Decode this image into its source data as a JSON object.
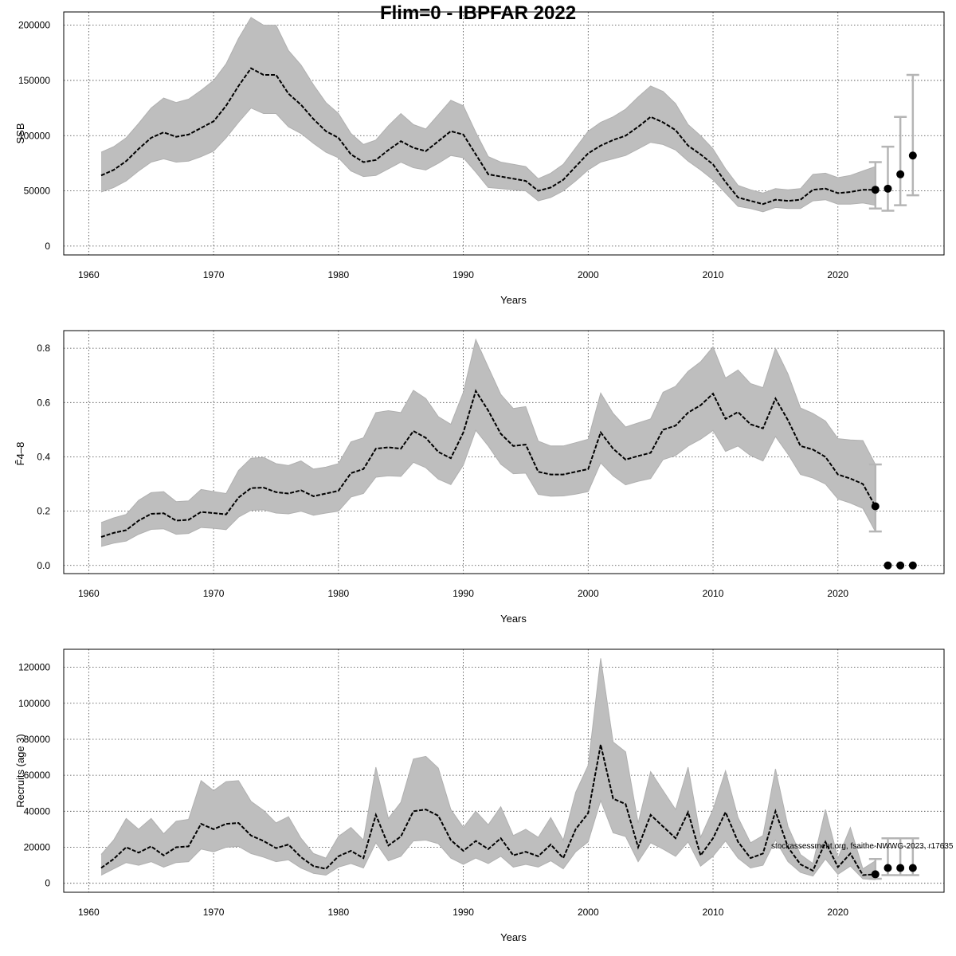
{
  "page_title": "Flim=0 - IBPFAR 2022",
  "credit": "stockassessment.org, fsaithe-NWWG-2023, r17635",
  "chart_data": [
    {
      "type": "line",
      "title": "Flim=0 - IBPFAR 2022",
      "xlabel": "Years",
      "ylabel": "SSB",
      "xlim": [
        1958,
        2028.5
      ],
      "ylim": [
        -8000,
        212000
      ],
      "xticks": [
        1960,
        1970,
        1980,
        1990,
        2000,
        2010,
        2020
      ],
      "yticks": [
        0,
        50000,
        100000,
        150000,
        200000
      ],
      "x": [
        1961,
        1962,
        1963,
        1964,
        1965,
        1966,
        1967,
        1968,
        1969,
        1970,
        1971,
        1972,
        1973,
        1974,
        1975,
        1976,
        1977,
        1978,
        1979,
        1980,
        1981,
        1982,
        1983,
        1984,
        1985,
        1986,
        1987,
        1988,
        1989,
        1990,
        1991,
        1992,
        1993,
        1994,
        1995,
        1996,
        1997,
        1998,
        1999,
        2000,
        2001,
        2002,
        2003,
        2004,
        2005,
        2006,
        2007,
        2008,
        2009,
        2010,
        2011,
        2012,
        2013,
        2014,
        2015,
        2016,
        2017,
        2018,
        2019,
        2020,
        2021,
        2022,
        2023
      ],
      "estimate": [
        64000,
        69000,
        77000,
        88000,
        98000,
        103000,
        99000,
        101000,
        107000,
        113000,
        127000,
        145000,
        161000,
        155000,
        155000,
        138000,
        128000,
        115000,
        104000,
        98000,
        83000,
        76000,
        78000,
        87000,
        95000,
        89000,
        86000,
        95000,
        104000,
        101000,
        83000,
        65000,
        63000,
        61000,
        59000,
        50000,
        53000,
        60000,
        72000,
        84000,
        91000,
        96000,
        100000,
        108000,
        117000,
        112000,
        105000,
        91000,
        83000,
        74000,
        58000,
        44000,
        41000,
        38000,
        42000,
        41000,
        42000,
        51000,
        52000,
        48000,
        49000,
        51000,
        51000
      ],
      "lower": [
        49000,
        53000,
        59000,
        68000,
        76000,
        79000,
        76000,
        77000,
        81000,
        86000,
        98000,
        112000,
        125000,
        120000,
        120000,
        108000,
        102000,
        93000,
        85000,
        80000,
        68000,
        63000,
        64000,
        70000,
        76000,
        71000,
        69000,
        75000,
        82000,
        80000,
        67000,
        53000,
        52000,
        51000,
        50000,
        41000,
        44000,
        50000,
        59000,
        69000,
        76000,
        79000,
        82000,
        88000,
        94000,
        92000,
        87000,
        77000,
        69000,
        60000,
        48000,
        36000,
        34000,
        31000,
        35000,
        34000,
        34000,
        41000,
        42000,
        38000,
        38000,
        39000,
        37000
      ],
      "upper": [
        85000,
        90000,
        98000,
        111000,
        125000,
        134000,
        130000,
        133000,
        141000,
        150000,
        165000,
        188000,
        207000,
        200000,
        200000,
        177000,
        164000,
        146000,
        130000,
        120000,
        102000,
        92000,
        96000,
        109000,
        120000,
        110000,
        106000,
        119000,
        132000,
        127000,
        103000,
        81000,
        76000,
        74000,
        72000,
        61000,
        66000,
        74000,
        89000,
        104000,
        112000,
        117000,
        124000,
        135000,
        145000,
        140000,
        129000,
        110000,
        100000,
        88000,
        70000,
        55000,
        51000,
        48000,
        52000,
        51000,
        52000,
        65000,
        66000,
        62000,
        64000,
        68000,
        72000
      ],
      "forecast": [
        {
          "x": 2023,
          "median": 51000,
          "low": 34000,
          "high": 76000
        },
        {
          "x": 2024,
          "median": 52000,
          "low": 32000,
          "high": 90000
        },
        {
          "x": 2025,
          "median": 65000,
          "low": 37000,
          "high": 117000
        },
        {
          "x": 2026,
          "median": 82000,
          "low": 46000,
          "high": 155000
        }
      ]
    },
    {
      "type": "line",
      "title": "",
      "xlabel": "Years",
      "ylabel": "F̄4–8",
      "xlim": [
        1958,
        2028.5
      ],
      "ylim": [
        -0.03,
        0.865
      ],
      "xticks": [
        1960,
        1970,
        1980,
        1990,
        2000,
        2010,
        2020
      ],
      "yticks": [
        "0.0",
        "0.2",
        "0.4",
        "0.6",
        "0.8"
      ],
      "x": [
        1961,
        1962,
        1963,
        1964,
        1965,
        1966,
        1967,
        1968,
        1969,
        1970,
        1971,
        1972,
        1973,
        1974,
        1975,
        1976,
        1977,
        1978,
        1979,
        1980,
        1981,
        1982,
        1983,
        1984,
        1985,
        1986,
        1987,
        1988,
        1989,
        1990,
        1991,
        1992,
        1993,
        1994,
        1995,
        1996,
        1997,
        1998,
        1999,
        2000,
        2001,
        2002,
        2003,
        2004,
        2005,
        2006,
        2007,
        2008,
        2009,
        2010,
        2011,
        2012,
        2013,
        2014,
        2015,
        2016,
        2017,
        2018,
        2019,
        2020,
        2021,
        2022,
        2023
      ],
      "estimate": [
        0.105,
        0.12,
        0.13,
        0.165,
        0.19,
        0.192,
        0.165,
        0.168,
        0.197,
        0.193,
        0.188,
        0.25,
        0.285,
        0.287,
        0.27,
        0.265,
        0.277,
        0.255,
        0.265,
        0.275,
        0.34,
        0.355,
        0.43,
        0.435,
        0.43,
        0.495,
        0.47,
        0.418,
        0.395,
        0.49,
        0.643,
        0.57,
        0.485,
        0.44,
        0.445,
        0.345,
        0.335,
        0.335,
        0.345,
        0.355,
        0.49,
        0.43,
        0.39,
        0.403,
        0.415,
        0.5,
        0.515,
        0.563,
        0.59,
        0.633,
        0.54,
        0.565,
        0.52,
        0.505,
        0.615,
        0.535,
        0.44,
        0.427,
        0.4,
        0.335,
        0.32,
        0.3,
        0.218
      ],
      "lower": [
        0.07,
        0.082,
        0.09,
        0.115,
        0.133,
        0.135,
        0.115,
        0.118,
        0.14,
        0.137,
        0.132,
        0.178,
        0.203,
        0.205,
        0.193,
        0.19,
        0.2,
        0.185,
        0.193,
        0.2,
        0.252,
        0.265,
        0.325,
        0.33,
        0.328,
        0.38,
        0.36,
        0.318,
        0.298,
        0.37,
        0.498,
        0.44,
        0.373,
        0.338,
        0.34,
        0.262,
        0.255,
        0.256,
        0.263,
        0.272,
        0.378,
        0.33,
        0.297,
        0.31,
        0.32,
        0.39,
        0.405,
        0.44,
        0.465,
        0.497,
        0.42,
        0.44,
        0.405,
        0.385,
        0.475,
        0.41,
        0.335,
        0.322,
        0.3,
        0.245,
        0.23,
        0.21,
        0.125
      ],
      "upper": [
        0.158,
        0.175,
        0.188,
        0.24,
        0.268,
        0.272,
        0.235,
        0.238,
        0.28,
        0.272,
        0.265,
        0.35,
        0.395,
        0.398,
        0.375,
        0.368,
        0.385,
        0.355,
        0.362,
        0.375,
        0.455,
        0.47,
        0.563,
        0.57,
        0.563,
        0.645,
        0.615,
        0.548,
        0.52,
        0.638,
        0.832,
        0.73,
        0.63,
        0.578,
        0.585,
        0.458,
        0.44,
        0.44,
        0.452,
        0.465,
        0.635,
        0.56,
        0.51,
        0.525,
        0.54,
        0.638,
        0.66,
        0.715,
        0.75,
        0.805,
        0.69,
        0.72,
        0.67,
        0.655,
        0.8,
        0.705,
        0.58,
        0.56,
        0.532,
        0.467,
        0.462,
        0.46,
        0.372
      ],
      "forecast": [
        {
          "x": 2023,
          "median": 0.218,
          "low": 0.125,
          "high": 0.372
        },
        {
          "x": 2024,
          "median": 0.0,
          "low": 0.0,
          "high": 0.0
        },
        {
          "x": 2025,
          "median": 0.0,
          "low": 0.0,
          "high": 0.0
        },
        {
          "x": 2026,
          "median": 0.0,
          "low": 0.0,
          "high": 0.0
        }
      ]
    },
    {
      "type": "line",
      "title": "",
      "xlabel": "Years",
      "ylabel": "Recruits (age 3)",
      "xlim": [
        1958,
        2028.5
      ],
      "ylim": [
        -5000,
        130000
      ],
      "xticks": [
        1960,
        1970,
        1980,
        1990,
        2000,
        2010,
        2020
      ],
      "yticks": [
        0,
        20000,
        40000,
        60000,
        80000,
        100000,
        120000
      ],
      "x": [
        1961,
        1962,
        1963,
        1964,
        1965,
        1966,
        1967,
        1968,
        1969,
        1970,
        1971,
        1972,
        1973,
        1974,
        1975,
        1976,
        1977,
        1978,
        1979,
        1980,
        1981,
        1982,
        1983,
        1984,
        1985,
        1986,
        1987,
        1988,
        1989,
        1990,
        1991,
        1992,
        1993,
        1994,
        1995,
        1996,
        1997,
        1998,
        1999,
        2000,
        2001,
        2002,
        2003,
        2004,
        2005,
        2006,
        2007,
        2008,
        2009,
        2010,
        2011,
        2012,
        2013,
        2014,
        2015,
        2016,
        2017,
        2018,
        2019,
        2020,
        2021,
        2022,
        2023
      ],
      "estimate": [
        8500,
        13500,
        20000,
        17000,
        20500,
        15500,
        20000,
        20500,
        33000,
        30000,
        33000,
        33500,
        26500,
        23500,
        19500,
        21500,
        14500,
        9500,
        8000,
        15000,
        18000,
        14000,
        38000,
        21000,
        26000,
        40000,
        41000,
        37500,
        24000,
        18000,
        23500,
        19000,
        25000,
        15500,
        17500,
        15000,
        21500,
        14000,
        30000,
        39000,
        77000,
        47000,
        44000,
        20000,
        38000,
        31500,
        25000,
        39500,
        15500,
        25000,
        39500,
        23000,
        14000,
        16500,
        40000,
        20000,
        10500,
        7000,
        23000,
        9000,
        16500,
        4500,
        5000
      ],
      "lower": [
        4500,
        8000,
        11500,
        10000,
        12000,
        9000,
        11500,
        12000,
        19000,
        17500,
        20000,
        20500,
        16500,
        14500,
        12000,
        13000,
        8500,
        5500,
        4500,
        9000,
        11000,
        8500,
        22500,
        12500,
        15000,
        23500,
        24000,
        22000,
        14000,
        10500,
        14000,
        11000,
        15000,
        9000,
        10500,
        9000,
        12500,
        8000,
        17500,
        23000,
        46000,
        28000,
        26000,
        12000,
        22500,
        19000,
        15000,
        23000,
        9500,
        15000,
        23500,
        14000,
        8500,
        10000,
        24000,
        12000,
        6000,
        4000,
        13500,
        5000,
        9500,
        2500,
        2000
      ],
      "upper": [
        16000,
        24000,
        36000,
        30000,
        36000,
        27500,
        34500,
        35500,
        57000,
        51500,
        56500,
        57000,
        45500,
        40500,
        33500,
        37000,
        25000,
        16500,
        14000,
        26000,
        31000,
        24000,
        64500,
        36000,
        45000,
        69000,
        70500,
        64000,
        41000,
        31000,
        40000,
        32500,
        42500,
        26500,
        30000,
        25500,
        36500,
        24000,
        50500,
        65500,
        125000,
        78500,
        73000,
        33500,
        62000,
        51500,
        41000,
        64500,
        25500,
        41000,
        62500,
        36500,
        22500,
        26500,
        63500,
        31500,
        16000,
        11000,
        41000,
        14000,
        31000,
        8000,
        12500
      ],
      "forecast": [
        {
          "x": 2023,
          "median": 5000,
          "low": 2500,
          "high": 13500
        },
        {
          "x": 2024,
          "median": 8500,
          "low": 4500,
          "high": 25000
        },
        {
          "x": 2025,
          "median": 8500,
          "low": 4500,
          "high": 25000
        },
        {
          "x": 2026,
          "median": 8500,
          "low": 4500,
          "high": 25000
        }
      ]
    }
  ]
}
